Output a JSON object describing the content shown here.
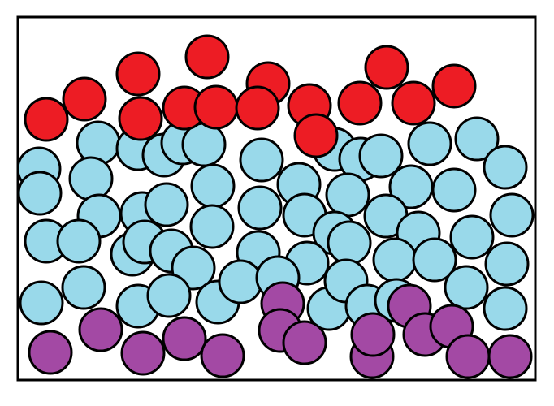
{
  "colors": {
    "background": "#ffffff",
    "outline": "#000000",
    "red": "#ed1c24",
    "blue": "#99d9ea",
    "purple": "#a349a4"
  },
  "layers": [
    "blue",
    "purple",
    "red"
  ]
}
